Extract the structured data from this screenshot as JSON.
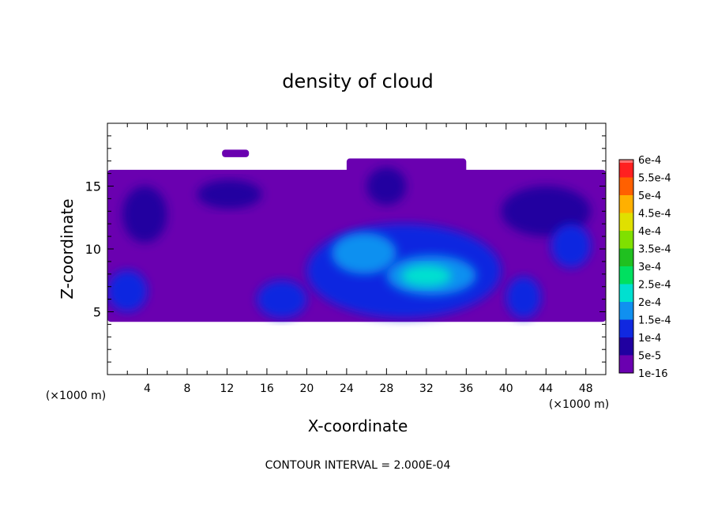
{
  "chart_data": {
    "type": "heatmap",
    "title": "density of cloud",
    "xlabel": "X-coordinate",
    "ylabel": "Z-coordinate",
    "x_unit": "(×1000 m)",
    "y_unit": "(×1000 m)",
    "xlim": [
      0,
      50
    ],
    "ylim": [
      0,
      20
    ],
    "x_ticks": [
      4,
      8,
      12,
      16,
      20,
      24,
      28,
      32,
      36,
      40,
      44,
      48
    ],
    "y_ticks": [
      5,
      10,
      15
    ],
    "contour_interval_text": "CONTOUR INTERVAL = 2.000E-04",
    "colorbar": {
      "labels": [
        "1e-16",
        "5e-5",
        "1e-4",
        "1.5e-4",
        "2e-4",
        "2.5e-4",
        "3e-4",
        "3.5e-4",
        "4e-4",
        "4.5e-4",
        "5e-4",
        "5.5e-4",
        "6e-4"
      ],
      "colors": [
        "#6a00b0",
        "#2000a0",
        "#1028e0",
        "#1090f0",
        "#00e0d0",
        "#00e060",
        "#20c020",
        "#80e000",
        "#e0e000",
        "#ffb000",
        "#ff6000",
        "#ff2020",
        "#ff7070"
      ]
    },
    "cloud_regions": [
      {
        "x0": 0.0,
        "x1": 50.0,
        "z0": 4.2,
        "z1": 16.3,
        "level": 1e-16
      },
      {
        "x0": 24.0,
        "x1": 36.0,
        "z0": 13.5,
        "z1": 17.2,
        "level": 1e-16
      },
      {
        "x0": 11.5,
        "x1": 14.2,
        "z0": 17.3,
        "z1": 17.9,
        "level": 1e-16
      },
      {
        "x0": 1.5,
        "x1": 6.0,
        "z0": 10.5,
        "z1": 15.0,
        "level": 5e-05
      },
      {
        "x0": 9.0,
        "x1": 15.5,
        "z0": 13.2,
        "z1": 15.5,
        "level": 5e-05
      },
      {
        "x0": 26.0,
        "x1": 30.0,
        "z0": 13.5,
        "z1": 16.5,
        "level": 5e-05
      },
      {
        "x0": 39.5,
        "x1": 48.5,
        "z0": 11.0,
        "z1": 15.0,
        "level": 5e-05
      },
      {
        "x0": 0.0,
        "x1": 4.0,
        "z0": 5.0,
        "z1": 8.3,
        "level": 0.0001
      },
      {
        "x0": 15.0,
        "x1": 20.0,
        "z0": 4.5,
        "z1": 7.5,
        "level": 0.0001
      },
      {
        "x0": 20.0,
        "x1": 39.5,
        "z0": 4.5,
        "z1": 12.0,
        "level": 0.0001
      },
      {
        "x0": 40.0,
        "x1": 43.5,
        "z0": 4.5,
        "z1": 7.8,
        "level": 0.0001
      },
      {
        "x0": 44.5,
        "x1": 48.5,
        "z0": 8.5,
        "z1": 12.0,
        "level": 0.0001
      },
      {
        "x0": 22.5,
        "x1": 29.0,
        "z0": 8.0,
        "z1": 11.3,
        "level": 0.00015
      },
      {
        "x0": 28.0,
        "x1": 37.0,
        "z0": 6.3,
        "z1": 9.5,
        "level": 0.00015
      },
      {
        "x0": 29.5,
        "x1": 34.5,
        "z0": 7.0,
        "z1": 8.7,
        "level": 0.0002
      }
    ]
  }
}
